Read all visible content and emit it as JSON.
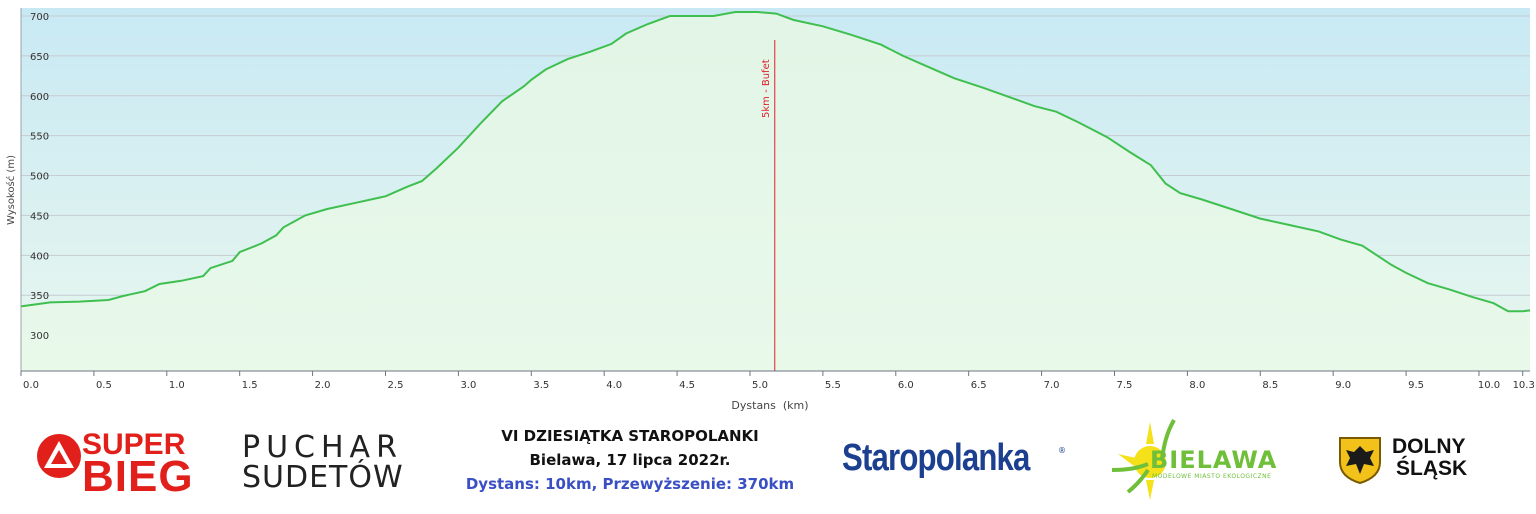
{
  "chart_data": {
    "type": "area",
    "ylabel": "Wysokość (m)",
    "xlabel": "Dystans  (km)",
    "xlim": [
      0,
      10.35
    ],
    "ylim": [
      255,
      710
    ],
    "y_ticks": [
      300,
      350,
      400,
      450,
      500,
      550,
      600,
      650,
      700
    ],
    "x_ticks": [
      0.0,
      0.5,
      1.0,
      1.5,
      2.0,
      2.5,
      3.0,
      3.5,
      4.0,
      4.5,
      5.0,
      5.5,
      6.0,
      6.5,
      7.0,
      7.5,
      8.0,
      8.5,
      9.0,
      9.5,
      10.0,
      10.3
    ],
    "x_tick_labels": [
      "0.0",
      "0.5",
      "1.0",
      "1.5",
      "2.0",
      "2.5",
      "3.0",
      "3.5",
      "4.0",
      "4.5",
      "5.0",
      "5.5",
      "6.0",
      "6.5",
      "7.0",
      "7.5",
      "8.0",
      "8.5",
      "9.0",
      "9.5",
      "10.0",
      "10.3"
    ],
    "grid": "horizontal",
    "series": [
      {
        "x": [
          0.0,
          0.2,
          0.4,
          0.6,
          0.7,
          0.85,
          0.95,
          1.1,
          1.25,
          1.3,
          1.45,
          1.5,
          1.65,
          1.75,
          1.8,
          1.95,
          2.1,
          2.3,
          2.5,
          2.65,
          2.75,
          2.85,
          3.0,
          3.15,
          3.3,
          3.45,
          3.5,
          3.6,
          3.75,
          3.9,
          4.05,
          4.15,
          4.3,
          4.45,
          4.6,
          4.75,
          4.9,
          5.05,
          5.18,
          5.3,
          5.5,
          5.7,
          5.9,
          6.05,
          6.2,
          6.4,
          6.6,
          6.8,
          6.95,
          7.1,
          7.25,
          7.45,
          7.6,
          7.75,
          7.85,
          7.95,
          8.1,
          8.3,
          8.5,
          8.7,
          8.9,
          9.05,
          9.2,
          9.4,
          9.5,
          9.65,
          9.8,
          9.95,
          10.1,
          10.2,
          10.3,
          10.35
        ],
        "y": [
          336,
          341,
          342,
          344,
          349,
          355,
          364,
          368,
          374,
          384,
          393,
          404,
          415,
          425,
          435,
          450,
          458,
          466,
          474,
          486,
          493,
          509,
          535,
          565,
          593,
          612,
          620,
          633,
          646,
          655,
          665,
          678,
          690,
          700,
          700,
          700,
          705,
          705,
          703,
          695,
          687,
          676,
          664,
          650,
          638,
          622,
          610,
          597,
          587,
          580,
          567,
          548,
          530,
          513,
          490,
          478,
          470,
          458,
          446,
          438,
          430,
          420,
          412,
          388,
          378,
          365,
          357,
          348,
          340,
          330,
          330,
          331
        ]
      }
    ],
    "annotations": [
      {
        "x": 5.17,
        "text": "5km - Bufet"
      }
    ],
    "colors": {
      "line": "#3fbf4f",
      "marker": "#e0212b",
      "grid": "#c6ccd2",
      "bg_top": "#c8e9f4",
      "bg_bottom": "#e9f7ee"
    }
  },
  "footer": {
    "super": "SUPER",
    "bieg": "BIEG",
    "puchar": "PUCHAR",
    "sudetow": "SUDETÓW",
    "event_title": "VI DZIESIĄTKA STAROPOLANKI",
    "event_place_date": "Bielawa, 17 lipca 2022r.",
    "event_details": "Dystans: 10km, Przewyższenie: 370km",
    "staropolanka": "Staropolanka",
    "staropolanka_reg": "®",
    "bielawa": "BIELAWA",
    "bielawa_sub": "MODELOWE MIASTO EKOLOGICZNE",
    "dolny": "DOLNY",
    "slask": "ŚLĄSK"
  }
}
